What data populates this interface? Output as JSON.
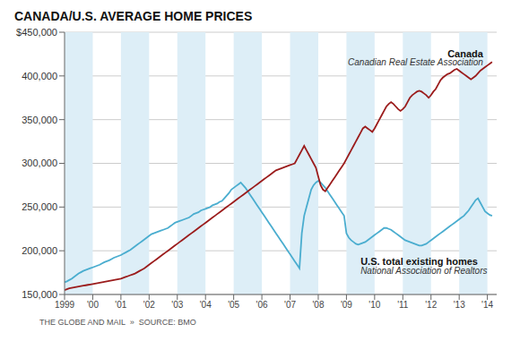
{
  "chart_data": {
    "type": "line",
    "title": "CANADA/U.S. AVERAGE HOME PRICES",
    "footer": "THE GLOBE AND MAIL  »  SOURCE: BMO",
    "xlim": [
      1999.0,
      2014.33
    ],
    "xticks": [
      1999,
      {
        "value": 2000,
        "label": "'00"
      },
      {
        "value": 2001,
        "label": "'01"
      },
      {
        "value": 2002,
        "label": "'02"
      },
      {
        "value": 2003,
        "label": "'03"
      },
      {
        "value": 2004,
        "label": "'04"
      },
      {
        "value": 2005,
        "label": "'05"
      },
      {
        "value": 2006,
        "label": "'06"
      },
      {
        "value": 2007,
        "label": "'07"
      },
      {
        "value": 2008,
        "label": "'08"
      },
      {
        "value": 2009,
        "label": "'09"
      },
      {
        "value": 2010,
        "label": "'10"
      },
      {
        "value": 2011,
        "label": "'11"
      },
      {
        "value": 2012,
        "label": "'12"
      },
      {
        "value": 2013,
        "label": "'13"
      },
      {
        "value": 2014,
        "label": "'14"
      }
    ],
    "ylim": [
      150000,
      450000
    ],
    "yticks": [
      {
        "value": 150000,
        "label": "150,000"
      },
      {
        "value": 200000,
        "label": "200,000"
      },
      {
        "value": 250000,
        "label": "250,000"
      },
      {
        "value": 300000,
        "label": "300,000"
      },
      {
        "value": 350000,
        "label": "350,000"
      },
      {
        "value": 400000,
        "label": "400,000"
      },
      {
        "value": 450000,
        "label": "$450,000"
      }
    ],
    "grid": true,
    "annotations": [
      {
        "text": "Canada",
        "x": 2013.85,
        "y": 430000
      },
      {
        "text": "Canadian Real Estate Association",
        "x": 2013.85,
        "y": 420000
      },
      {
        "text": "U.S. total existing homes",
        "x": 2009.5,
        "y": 192000
      },
      {
        "text": "National Association of Realtors",
        "x": 2009.5,
        "y": 181000
      }
    ],
    "x": [
      1999,
      1999.083333,
      1999.166667,
      1999.25,
      1999.333333,
      1999.416667,
      1999.5,
      1999.583333,
      1999.666667,
      1999.75,
      1999.833333,
      1999.916667,
      2000,
      2000.083333,
      2000.166667,
      2000.25,
      2000.333333,
      2000.416667,
      2000.5,
      2000.583333,
      2000.666667,
      2000.75,
      2000.833333,
      2000.916667,
      2001,
      2001.083333,
      2001.166667,
      2001.25,
      2001.333333,
      2001.416667,
      2001.5,
      2001.583333,
      2001.666667,
      2001.75,
      2001.833333,
      2001.916667,
      2002,
      2002.083333,
      2002.166667,
      2002.25,
      2002.333333,
      2002.416667,
      2002.5,
      2002.583333,
      2002.666667,
      2002.75,
      2002.833333,
      2002.916667,
      2003,
      2003.083333,
      2003.166667,
      2003.25,
      2003.333333,
      2003.416667,
      2003.5,
      2003.583333,
      2003.666667,
      2003.75,
      2003.833333,
      2003.916667,
      2004,
      2004.083333,
      2004.166667,
      2004.25,
      2004.333333,
      2004.416667,
      2004.5,
      2004.583333,
      2004.666667,
      2004.75,
      2004.833333,
      2004.916667,
      2005,
      2005.083333,
      2005.166667,
      2005.25,
      2005.333333,
      2005.416667,
      2005.5,
      2005.583333,
      2005.666667,
      2005.75,
      2005.833333,
      2005.916667,
      2006,
      2006.083333,
      2006.166667,
      2006.25,
      2006.333333,
      2006.416667,
      2006.5,
      2006.583333,
      2006.666667,
      2006.75,
      2006.833333,
      2006.916667,
      2007,
      2007.083333,
      2007.166667,
      2007.25,
      2007.333333,
      2007.416667,
      2007.5,
      2007.583333,
      2007.666667,
      2007.75,
      2007.833333,
      2007.916667,
      2008,
      2008.083333,
      2008.166667,
      2008.25,
      2008.333333,
      2008.416667,
      2008.5,
      2008.583333,
      2008.666667,
      2008.75,
      2008.833333,
      2008.916667,
      2009,
      2009.083333,
      2009.166667,
      2009.25,
      2009.333333,
      2009.416667,
      2009.5,
      2009.583333,
      2009.666667,
      2009.75,
      2009.833333,
      2009.916667,
      2010,
      2010.083333,
      2010.166667,
      2010.25,
      2010.333333,
      2010.416667,
      2010.5,
      2010.583333,
      2010.666667,
      2010.75,
      2010.833333,
      2010.916667,
      2011,
      2011.083333,
      2011.166667,
      2011.25,
      2011.333333,
      2011.416667,
      2011.5,
      2011.583333,
      2011.666667,
      2011.75,
      2011.833333,
      2011.916667,
      2012,
      2012.083333,
      2012.166667,
      2012.25,
      2012.333333,
      2012.416667,
      2012.5,
      2012.583333,
      2012.666667,
      2012.75,
      2012.833333,
      2012.916667,
      2013,
      2013.083333,
      2013.166667,
      2013.25,
      2013.333333,
      2013.416667,
      2013.5,
      2013.583333,
      2013.666667,
      2013.75,
      2013.833333,
      2013.916667,
      2014,
      2014.083333,
      2014.166667
    ],
    "series": [
      {
        "name": "U.S. total existing homes",
        "color": "#4aadcf",
        "values": [
          164000,
          165000,
          166500,
          168000,
          170000,
          172000,
          174000,
          175500,
          177000,
          178000,
          179000,
          180000,
          181000,
          182000,
          183000,
          184000,
          185500,
          187000,
          188000,
          189000,
          190500,
          192000,
          193000,
          194000,
          195000,
          196500,
          198000,
          199500,
          201000,
          203000,
          205000,
          207000,
          209000,
          211000,
          213000,
          215000,
          217000,
          219000,
          220000,
          221000,
          222000,
          223000,
          224000,
          225000,
          226000,
          228000,
          230000,
          232000,
          233000,
          234000,
          235000,
          236000,
          237000,
          238000,
          240000,
          242000,
          243000,
          244000,
          246000,
          247000,
          248000,
          249000,
          250000,
          252000,
          253000,
          254000,
          256000,
          257000,
          260000,
          263000,
          266000,
          270000,
          272000,
          274000,
          276000,
          278000,
          275000,
          272000,
          268000,
          264000,
          260000,
          256000,
          252000,
          248000,
          244000,
          240000,
          236000,
          232000,
          228000,
          224000,
          220000,
          216000,
          212000,
          208000,
          204000,
          200000,
          196000,
          192000,
          188000,
          184000,
          180000,
          220000,
          240000,
          250000,
          260000,
          270000,
          275000,
          278000,
          280000,
          278000,
          275000,
          272000,
          268000,
          264000,
          260000,
          256000,
          252000,
          248000,
          244000,
          240000,
          220000,
          215000,
          212000,
          210000,
          208000,
          207000,
          208000,
          209000,
          210000,
          212000,
          214000,
          216000,
          218000,
          220000,
          222000,
          224000,
          226000,
          226000,
          225000,
          224000,
          222000,
          220000,
          218000,
          216000,
          214000,
          212000,
          211000,
          210000,
          209000,
          208000,
          207000,
          206000,
          206000,
          207000,
          208000,
          210000,
          212000,
          214000,
          216000,
          218000,
          220000,
          222000,
          224000,
          226000,
          228000,
          230000,
          232000,
          234000,
          236000,
          238000,
          240000,
          243000,
          246000,
          250000,
          254000,
          258000,
          260000,
          255000,
          250000,
          245000,
          243000,
          241000,
          240000
        ]
      },
      {
        "name": "Canada",
        "color": "#9B1C1C",
        "values": [
          155000,
          156000,
          157000,
          157500,
          158000,
          158500,
          159000,
          159500,
          160000,
          160500,
          161000,
          161500,
          162000,
          162500,
          163000,
          163500,
          164000,
          164500,
          165000,
          165500,
          166000,
          166500,
          167000,
          167500,
          168000,
          169000,
          170000,
          171000,
          172000,
          173000,
          174000,
          175500,
          177000,
          178500,
          180000,
          182000,
          184000,
          186000,
          188000,
          190000,
          192000,
          194000,
          196000,
          198000,
          200000,
          202000,
          204000,
          206000,
          208000,
          210000,
          212000,
          214000,
          216000,
          218000,
          220000,
          222000,
          224000,
          226000,
          228000,
          230000,
          232000,
          234000,
          236000,
          238000,
          240000,
          242000,
          244000,
          246000,
          248000,
          250000,
          252000,
          254000,
          256000,
          258000,
          260000,
          262000,
          264000,
          266000,
          268000,
          270000,
          272000,
          274000,
          276000,
          278000,
          280000,
          282000,
          284000,
          286000,
          288000,
          290000,
          292000,
          293000,
          294000,
          295000,
          296000,
          297000,
          298000,
          299000,
          300000,
          305000,
          310000,
          315000,
          320000,
          315000,
          310000,
          305000,
          300000,
          295000,
          285000,
          275000,
          270000,
          268000,
          272000,
          276000,
          280000,
          284000,
          288000,
          292000,
          296000,
          300000,
          305000,
          310000,
          315000,
          320000,
          325000,
          330000,
          335000,
          340000,
          342000,
          340000,
          338000,
          336000,
          340000,
          345000,
          350000,
          355000,
          360000,
          365000,
          368000,
          370000,
          368000,
          365000,
          362000,
          360000,
          362000,
          365000,
          370000,
          375000,
          378000,
          380000,
          382000,
          383000,
          382000,
          380000,
          378000,
          375000,
          378000,
          382000,
          385000,
          390000,
          395000,
          398000,
          400000,
          402000,
          403000,
          405000,
          407000,
          408000,
          406000,
          404000,
          402000,
          400000,
          398000,
          396000,
          398000,
          400000,
          403000,
          406000,
          408000,
          410000,
          412000,
          414000,
          416000
        ]
      }
    ]
  }
}
